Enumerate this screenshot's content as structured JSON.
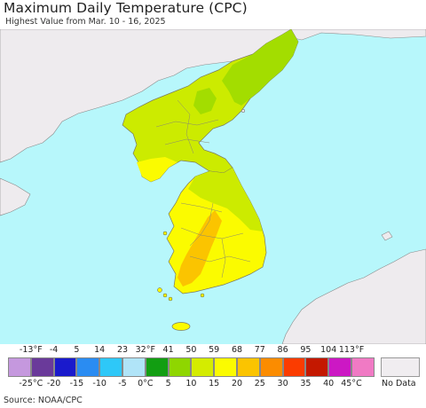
{
  "header": {
    "title": "Maximum Daily Temperature (CPC)",
    "subtitle": "Highest Value from Mar. 10 - 16, 2025"
  },
  "map": {
    "colors": {
      "ocean": "#b7f7fb",
      "land_nodata": "#eeebee",
      "band_10c": "#a3dd00",
      "band_15c": "#cceb00",
      "band_20c": "#fbfb00",
      "band_25c": "#fbc400",
      "border": "#7a7a60"
    }
  },
  "legend": {
    "fahrenheit_labels": [
      "-13°F",
      "-4",
      "5",
      "14",
      "23",
      "32°F",
      "41",
      "50",
      "59",
      "68",
      "77",
      "86",
      "95",
      "104",
      "113°F"
    ],
    "celsius_labels": [
      "-25°C",
      "-20",
      "-15",
      "-10",
      "-5",
      "0°C",
      "5",
      "10",
      "15",
      "20",
      "25",
      "30",
      "35",
      "40",
      "45°C"
    ],
    "colors": [
      "#c598de",
      "#6a3a9a",
      "#1a1acc",
      "#2a8cf2",
      "#2ec8f8",
      "#b0e4f8",
      "#129e12",
      "#8fd600",
      "#d4ec00",
      "#fbfb00",
      "#fbc400",
      "#fb8c00",
      "#fb3c00",
      "#c41800",
      "#cc18c4",
      "#f07ac4"
    ],
    "no_data_label": "No Data",
    "no_data_color": "#f0edf0"
  },
  "footer": {
    "source": "Source: NOAA/CPC"
  }
}
